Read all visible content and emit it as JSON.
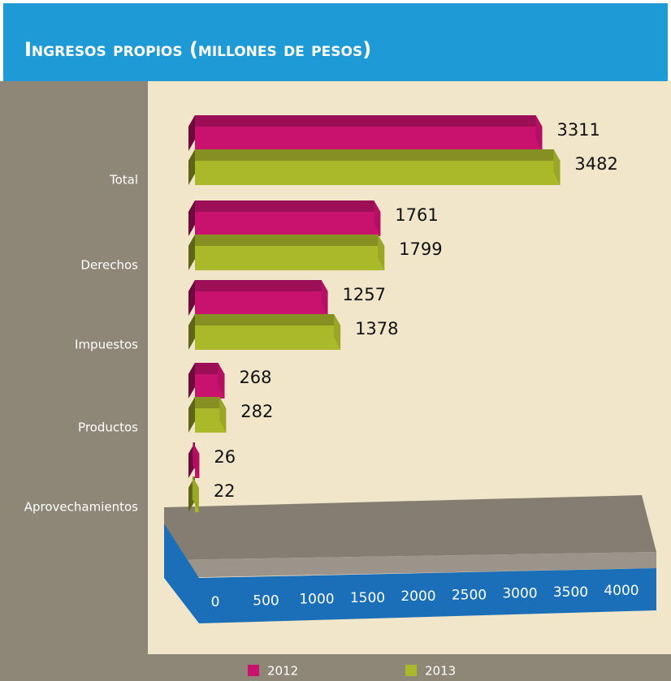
{
  "chart_data": {
    "type": "bar3d-horizontal",
    "title": "Ingresos propios (millones de pesos)",
    "categories": [
      "Total",
      "Derechos",
      "Impuestos",
      "Productos",
      "Aprovechamientos"
    ],
    "series": [
      {
        "name": "2012",
        "color": "#c8126e",
        "values": [
          3311,
          1761,
          1257,
          268,
          26
        ]
      },
      {
        "name": "2013",
        "color": "#a9b92a",
        "values": [
          3482,
          1799,
          1378,
          282,
          22
        ]
      }
    ],
    "xlim": [
      0,
      4000
    ],
    "xticks": [
      0,
      500,
      1000,
      1500,
      2000,
      2500,
      3000,
      3500,
      4000
    ],
    "grid": false
  }
}
